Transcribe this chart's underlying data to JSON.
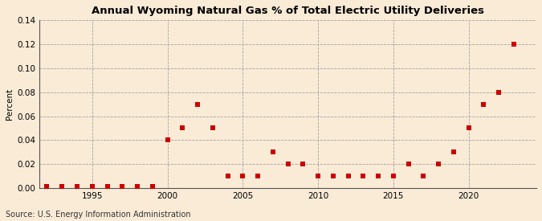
{
  "title": "Annual Wyoming Natural Gas % of Total Electric Utility Deliveries",
  "ylabel": "Percent",
  "source": "Source: U.S. Energy Information Administration",
  "background_color": "#faebd7",
  "years": [
    1992,
    1993,
    1994,
    1995,
    1996,
    1997,
    1998,
    1999,
    2000,
    2001,
    2002,
    2003,
    2004,
    2005,
    2006,
    2007,
    2008,
    2009,
    2010,
    2011,
    2012,
    2013,
    2014,
    2015,
    2016,
    2017,
    2018,
    2019,
    2020,
    2021,
    2022,
    2023
  ],
  "values": [
    0.001,
    0.001,
    0.001,
    0.001,
    0.001,
    0.001,
    0.001,
    0.001,
    0.04,
    0.05,
    0.07,
    0.05,
    0.01,
    0.01,
    0.01,
    0.03,
    0.02,
    0.02,
    0.01,
    0.01,
    0.01,
    0.01,
    0.01,
    0.01,
    0.02,
    0.01,
    0.02,
    0.03,
    0.05,
    0.07,
    0.08,
    0.12
  ],
  "marker_color": "#cc0000",
  "marker_size": 18,
  "ylim": [
    0,
    0.14
  ],
  "yticks": [
    0.0,
    0.02,
    0.04,
    0.06,
    0.08,
    0.1,
    0.12,
    0.14
  ],
  "xticks": [
    1995,
    2000,
    2005,
    2010,
    2015,
    2020
  ],
  "grid_color": "#999999",
  "vline_color": "#999999",
  "figsize": [
    6.75,
    2.75
  ],
  "dpi": 100
}
